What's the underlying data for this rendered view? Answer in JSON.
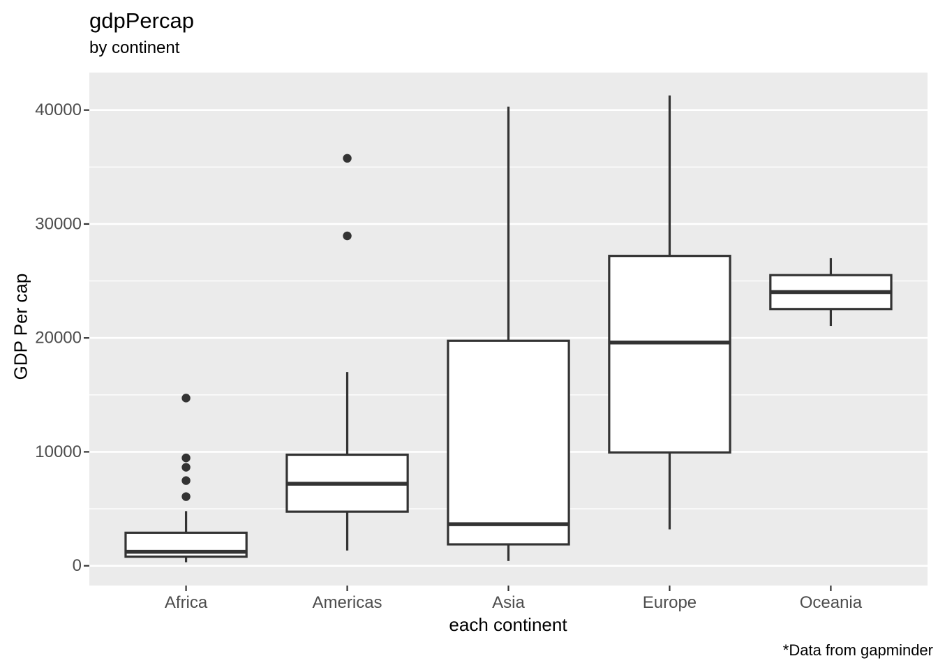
{
  "chart_data": {
    "type": "boxplot",
    "title": "gdpPercap",
    "subtitle": "by continent",
    "caption": "*Data from gapminder",
    "xlabel": "each continent",
    "ylabel": "GDP Per cap",
    "categories": [
      "Africa",
      "Americas",
      "Asia",
      "Europe",
      "Oceania"
    ],
    "series": [
      {
        "category": "Africa",
        "lower_whisker": 312,
        "q1": 800,
        "median": 1230,
        "q3": 2900,
        "upper_whisker": 4797,
        "outliers": [
          6072,
          7479,
          8647,
          9467,
          14723
        ]
      },
      {
        "category": "Americas",
        "lower_whisker": 1342,
        "q1": 4750,
        "median": 7200,
        "q3": 9750,
        "upper_whisker": 16999,
        "outliers": [
          28955,
          35767
        ]
      },
      {
        "category": "Asia",
        "lower_whisker": 420,
        "q1": 1880,
        "median": 3650,
        "q3": 19750,
        "upper_whisker": 40301,
        "outliers": []
      },
      {
        "category": "Europe",
        "lower_whisker": 3193,
        "q1": 9950,
        "median": 19600,
        "q3": 27200,
        "upper_whisker": 41283,
        "outliers": []
      },
      {
        "category": "Oceania",
        "lower_whisker": 21050,
        "q1": 22537,
        "median": 24024,
        "q3": 25511,
        "upper_whisker": 26998,
        "outliers": []
      }
    ],
    "y_ticks": [
      0,
      10000,
      20000,
      30000,
      40000
    ],
    "y_tick_labels": [
      "0",
      "10000",
      "20000",
      "30000",
      "40000"
    ],
    "y_minor_ticks": [
      5000,
      15000,
      25000,
      35000
    ],
    "y_axis_range": [
      -1735,
      43290
    ],
    "ylim": [
      0,
      40000
    ],
    "grid": true,
    "legend": false
  },
  "style": {
    "panel_background": "#EBEBEB",
    "grid_color": "#FFFFFF",
    "box_stroke": "#333333",
    "box_fill": "#FFFFFF",
    "outlier_color": "#333333",
    "tick_mark_color": "#333333",
    "tick_label_color": "#4D4D4D",
    "text_color": "#000000",
    "figure_background": "#FFFFFF"
  }
}
